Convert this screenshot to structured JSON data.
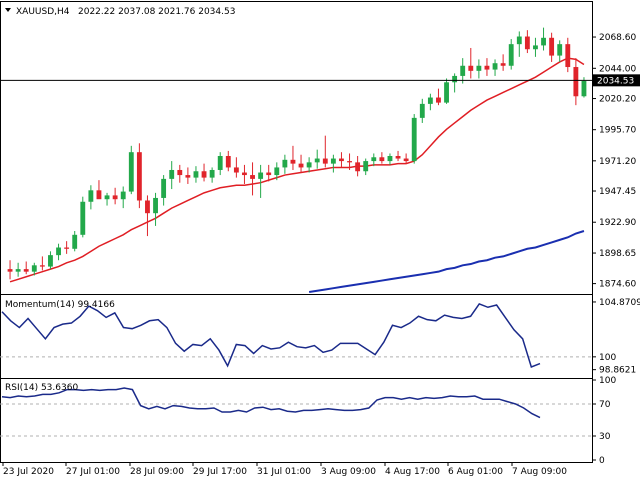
{
  "header": {
    "symbol_timeframe": "XAUUSD,H4",
    "ohlc": "2022.22 2037.08 2021.76 2034.53"
  },
  "colors": {
    "bull": "#22a84a",
    "bear": "#e0242b",
    "ma_fast": "#e01e24",
    "ma_slow": "#1a2fb0",
    "osc_line": "#1a2a8a",
    "price_tag_bg": "#000000"
  },
  "chart_data": [
    {
      "type": "candlestick",
      "title": "XAUUSD,H4",
      "current_price": 2034.53,
      "current_price_label": "2034.53",
      "ylim": [
        1868,
        2082
      ],
      "y_ticks": [
        2068.6,
        2044.0,
        2020.2,
        1995.7,
        1971.2,
        1947.45,
        1922.9,
        1898.65,
        1874.6
      ],
      "y_tick_labels": [
        "2068.60",
        "2044.00",
        "2020.20",
        "1995.70",
        "1971.20",
        "1947.45",
        "1922.90",
        "1898.65",
        "1874.60"
      ],
      "x_labels": [
        "23 Jul 2020",
        "27 Jul 01:00",
        "28 Jul 09:00",
        "29 Jul 17:00",
        "31 Jul 01:00",
        "3 Aug 09:00",
        "4 Aug 17:00",
        "6 Aug 01:00",
        "7 Aug 09:00"
      ],
      "candles": [
        {
          "o": 1886,
          "h": 1893,
          "l": 1878,
          "c": 1884
        },
        {
          "o": 1884,
          "h": 1891,
          "l": 1880,
          "c": 1886
        },
        {
          "o": 1886,
          "h": 1892,
          "l": 1882,
          "c": 1884
        },
        {
          "o": 1884,
          "h": 1891,
          "l": 1881,
          "c": 1889
        },
        {
          "o": 1889,
          "h": 1896,
          "l": 1885,
          "c": 1888
        },
        {
          "o": 1888,
          "h": 1900,
          "l": 1886,
          "c": 1897
        },
        {
          "o": 1897,
          "h": 1906,
          "l": 1893,
          "c": 1903
        },
        {
          "o": 1903,
          "h": 1908,
          "l": 1898,
          "c": 1902
        },
        {
          "o": 1902,
          "h": 1916,
          "l": 1900,
          "c": 1913
        },
        {
          "o": 1913,
          "h": 1943,
          "l": 1911,
          "c": 1939
        },
        {
          "o": 1939,
          "h": 1952,
          "l": 1933,
          "c": 1948
        },
        {
          "o": 1948,
          "h": 1956,
          "l": 1943,
          "c": 1941
        },
        {
          "o": 1941,
          "h": 1946,
          "l": 1936,
          "c": 1944
        },
        {
          "o": 1944,
          "h": 1950,
          "l": 1937,
          "c": 1941
        },
        {
          "o": 1941,
          "h": 1951,
          "l": 1934,
          "c": 1947
        },
        {
          "o": 1947,
          "h": 1983,
          "l": 1945,
          "c": 1978
        },
        {
          "o": 1978,
          "h": 1985,
          "l": 1934,
          "c": 1940
        },
        {
          "o": 1940,
          "h": 1944,
          "l": 1912,
          "c": 1930
        },
        {
          "o": 1930,
          "h": 1946,
          "l": 1920,
          "c": 1942
        },
        {
          "o": 1942,
          "h": 1960,
          "l": 1936,
          "c": 1957
        },
        {
          "o": 1957,
          "h": 1971,
          "l": 1949,
          "c": 1964
        },
        {
          "o": 1964,
          "h": 1968,
          "l": 1954,
          "c": 1960
        },
        {
          "o": 1960,
          "h": 1966,
          "l": 1953,
          "c": 1958
        },
        {
          "o": 1958,
          "h": 1967,
          "l": 1954,
          "c": 1963
        },
        {
          "o": 1963,
          "h": 1969,
          "l": 1955,
          "c": 1958
        },
        {
          "o": 1958,
          "h": 1966,
          "l": 1954,
          "c": 1964
        },
        {
          "o": 1964,
          "h": 1978,
          "l": 1960,
          "c": 1975
        },
        {
          "o": 1975,
          "h": 1979,
          "l": 1963,
          "c": 1966
        },
        {
          "o": 1966,
          "h": 1974,
          "l": 1958,
          "c": 1962
        },
        {
          "o": 1962,
          "h": 1968,
          "l": 1953,
          "c": 1960
        },
        {
          "o": 1960,
          "h": 1970,
          "l": 1944,
          "c": 1957
        },
        {
          "o": 1957,
          "h": 1968,
          "l": 1942,
          "c": 1962
        },
        {
          "o": 1962,
          "h": 1968,
          "l": 1955,
          "c": 1960
        },
        {
          "o": 1960,
          "h": 1970,
          "l": 1956,
          "c": 1966
        },
        {
          "o": 1966,
          "h": 1976,
          "l": 1961,
          "c": 1972
        },
        {
          "o": 1972,
          "h": 1983,
          "l": 1964,
          "c": 1969
        },
        {
          "o": 1969,
          "h": 1976,
          "l": 1962,
          "c": 1966
        },
        {
          "o": 1966,
          "h": 1974,
          "l": 1962,
          "c": 1970
        },
        {
          "o": 1970,
          "h": 1980,
          "l": 1965,
          "c": 1973
        },
        {
          "o": 1973,
          "h": 1991,
          "l": 1966,
          "c": 1969
        },
        {
          "o": 1969,
          "h": 1976,
          "l": 1962,
          "c": 1973
        },
        {
          "o": 1973,
          "h": 1978,
          "l": 1966,
          "c": 1971
        },
        {
          "o": 1971,
          "h": 1977,
          "l": 1964,
          "c": 1970
        },
        {
          "o": 1970,
          "h": 1975,
          "l": 1959,
          "c": 1963
        },
        {
          "o": 1963,
          "h": 1973,
          "l": 1960,
          "c": 1971
        },
        {
          "o": 1971,
          "h": 1977,
          "l": 1967,
          "c": 1974
        },
        {
          "o": 1974,
          "h": 1978,
          "l": 1969,
          "c": 1971
        },
        {
          "o": 1971,
          "h": 1977,
          "l": 1968,
          "c": 1975
        },
        {
          "o": 1975,
          "h": 1979,
          "l": 1971,
          "c": 1973
        },
        {
          "o": 1973,
          "h": 1977,
          "l": 1969,
          "c": 1971
        },
        {
          "o": 1971,
          "h": 2008,
          "l": 1969,
          "c": 2005
        },
        {
          "o": 2005,
          "h": 2020,
          "l": 2001,
          "c": 2016
        },
        {
          "o": 2016,
          "h": 2024,
          "l": 2011,
          "c": 2021
        },
        {
          "o": 2021,
          "h": 2028,
          "l": 2015,
          "c": 2017
        },
        {
          "o": 2017,
          "h": 2036,
          "l": 2016,
          "c": 2033
        },
        {
          "o": 2033,
          "h": 2040,
          "l": 2025,
          "c": 2038
        },
        {
          "o": 2038,
          "h": 2052,
          "l": 2032,
          "c": 2046
        },
        {
          "o": 2046,
          "h": 2060,
          "l": 2036,
          "c": 2042
        },
        {
          "o": 2042,
          "h": 2051,
          "l": 2036,
          "c": 2046
        },
        {
          "o": 2046,
          "h": 2052,
          "l": 2038,
          "c": 2043
        },
        {
          "o": 2043,
          "h": 2051,
          "l": 2038,
          "c": 2048
        },
        {
          "o": 2048,
          "h": 2055,
          "l": 2042,
          "c": 2046
        },
        {
          "o": 2046,
          "h": 2067,
          "l": 2043,
          "c": 2063
        },
        {
          "o": 2063,
          "h": 2073,
          "l": 2053,
          "c": 2069
        },
        {
          "o": 2069,
          "h": 2074,
          "l": 2056,
          "c": 2059
        },
        {
          "o": 2059,
          "h": 2068,
          "l": 2053,
          "c": 2062
        },
        {
          "o": 2062,
          "h": 2076,
          "l": 2058,
          "c": 2068
        },
        {
          "o": 2068,
          "h": 2072,
          "l": 2049,
          "c": 2054
        },
        {
          "o": 2054,
          "h": 2066,
          "l": 2049,
          "c": 2063
        },
        {
          "o": 2063,
          "h": 2068,
          "l": 2041,
          "c": 2045
        },
        {
          "o": 2045,
          "h": 2052,
          "l": 2015,
          "c": 2022
        },
        {
          "o": 2022,
          "h": 2037,
          "l": 2021,
          "c": 2034
        }
      ],
      "ma_fast": [
        1876,
        1878,
        1880,
        1882,
        1884,
        1886,
        1888,
        1891,
        1893,
        1896,
        1900,
        1904,
        1907,
        1910,
        1913,
        1917,
        1920,
        1923,
        1926,
        1930,
        1934,
        1937,
        1940,
        1943,
        1946,
        1948,
        1950,
        1951,
        1952,
        1952,
        1953,
        1954,
        1956,
        1958,
        1960,
        1961,
        1962,
        1963,
        1964,
        1965,
        1966,
        1966,
        1966,
        1967,
        1967,
        1968,
        1968,
        1968,
        1969,
        1969,
        1971,
        1976,
        1983,
        1990,
        1996,
        2001,
        2006,
        2011,
        2015,
        2019,
        2022,
        2025,
        2028,
        2031,
        2034,
        2037,
        2041,
        2045,
        2049,
        2052,
        2051,
        2047
      ],
      "ma_slow_start_index": 37,
      "ma_slow": [
        1868,
        1869,
        1870,
        1871,
        1872,
        1873,
        1874,
        1875,
        1876,
        1877,
        1878,
        1879,
        1880,
        1881,
        1882,
        1883,
        1884,
        1886,
        1887,
        1889,
        1890,
        1892,
        1893,
        1895,
        1896,
        1898,
        1900,
        1902,
        1903,
        1905,
        1907,
        1909,
        1911,
        1914,
        1916
      ]
    },
    {
      "type": "line",
      "title": "Momentum(14) 99.4166",
      "ylim": [
        98.3,
        105.4
      ],
      "y_ticks": [
        104.8709,
        100,
        98.8621
      ],
      "y_tick_labels": [
        "104.8709",
        "100",
        "98.8621"
      ],
      "reference_line": 100,
      "series": [
        {
          "name": "Momentum(14)",
          "values": [
            104.0,
            103.2,
            102.6,
            103.4,
            102.5,
            101.6,
            102.6,
            102.9,
            103.0,
            103.6,
            104.5,
            104.1,
            103.5,
            103.9,
            102.6,
            102.5,
            102.8,
            103.2,
            103.3,
            102.6,
            101.2,
            100.5,
            101.1,
            101.0,
            101.6,
            100.6,
            99.2,
            101.1,
            101.0,
            100.3,
            101.0,
            100.7,
            100.8,
            101.3,
            100.9,
            100.8,
            101.0,
            100.4,
            100.6,
            101.2,
            101.2,
            101.2,
            100.7,
            100.2,
            101.3,
            102.8,
            102.6,
            103.0,
            103.6,
            103.3,
            103.2,
            103.7,
            103.5,
            103.4,
            103.6,
            104.7,
            104.4,
            104.6,
            103.5,
            102.4,
            101.6,
            99.1,
            99.4
          ]
        }
      ]
    },
    {
      "type": "line",
      "title": "RSI(14) 53.6360",
      "ylim": [
        0,
        100
      ],
      "y_ticks": [
        100,
        70,
        30,
        0
      ],
      "y_tick_labels": [
        "100",
        "70",
        "30",
        "0"
      ],
      "reference_lines": [
        70,
        30
      ],
      "series": [
        {
          "name": "RSI(14)",
          "values": [
            79,
            78,
            80,
            79,
            80,
            82,
            82,
            84,
            88,
            88,
            87,
            88,
            87,
            88,
            88,
            90,
            88,
            68,
            64,
            67,
            64,
            68,
            67,
            65,
            64,
            64,
            65,
            60,
            60,
            62,
            60,
            65,
            66,
            63,
            64,
            61,
            60,
            62,
            62,
            63,
            64,
            63,
            62,
            62,
            63,
            65,
            75,
            78,
            78,
            76,
            78,
            76,
            78,
            77,
            78,
            80,
            79,
            79,
            80,
            76,
            76,
            76,
            73,
            70,
            65,
            58,
            53
          ]
        }
      ]
    }
  ]
}
